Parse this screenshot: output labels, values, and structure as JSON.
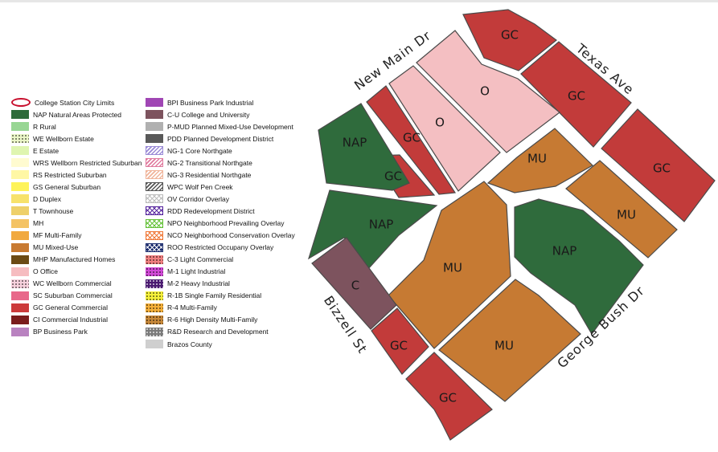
{
  "legend": {
    "column1": [
      {
        "name": "legend-college-station-city-limits",
        "label": "College Station City Limits",
        "swatch": "oval",
        "color": "#c8102e"
      },
      {
        "name": "legend-nap",
        "label": "NAP Natural Areas Protected",
        "swatch": "solid",
        "color": "#2e6b3a"
      },
      {
        "name": "legend-r",
        "label": "R Rural",
        "swatch": "solid",
        "color": "#98d694"
      },
      {
        "name": "legend-we",
        "label": "WE Wellborn Estate",
        "swatch": "dots",
        "color": "#eaf6c8"
      },
      {
        "name": "legend-e",
        "label": "E Estate",
        "swatch": "solid",
        "color": "#dff5b0"
      },
      {
        "name": "legend-wrs",
        "label": "WRS Wellborn Restricted Suburban",
        "swatch": "solid",
        "color": "#fffbd0"
      },
      {
        "name": "legend-rs",
        "label": "RS Restricted Suburban",
        "swatch": "solid",
        "color": "#fff7a5"
      },
      {
        "name": "legend-gs",
        "label": "GS General Suburban",
        "swatch": "solid",
        "color": "#fef35a"
      },
      {
        "name": "legend-d",
        "label": "D Duplex",
        "swatch": "solid",
        "color": "#f7e26b"
      },
      {
        "name": "legend-t",
        "label": "T Townhouse",
        "swatch": "solid",
        "color": "#eed06a"
      },
      {
        "name": "legend-mh",
        "label": "MH",
        "swatch": "solid",
        "color": "#f4c364"
      },
      {
        "name": "legend-mf",
        "label": "MF Multi-Family",
        "swatch": "solid",
        "color": "#f1a93f"
      },
      {
        "name": "legend-mu",
        "label": "MU Mixed-Use",
        "swatch": "solid",
        "color": "#c87a31"
      },
      {
        "name": "legend-mhp",
        "label": "MHP Manufactured Homes",
        "swatch": "solid",
        "color": "#6b4a14"
      },
      {
        "name": "legend-o",
        "label": "O Office",
        "swatch": "solid",
        "color": "#f6bcc0"
      },
      {
        "name": "legend-wc",
        "label": "WC Wellborn Commercial",
        "swatch": "dots",
        "color": "#f7d0dc"
      },
      {
        "name": "legend-sc",
        "label": "SC Suburban Commercial",
        "swatch": "solid",
        "color": "#e8688a"
      },
      {
        "name": "legend-gc",
        "label": "GC General Commercial",
        "swatch": "solid",
        "color": "#cc3a3a"
      },
      {
        "name": "legend-ci",
        "label": "CI Commercial Industrial",
        "swatch": "solid",
        "color": "#7a1c1c"
      },
      {
        "name": "legend-bp",
        "label": "BP Business Park",
        "swatch": "solid",
        "color": "#b982c0"
      }
    ],
    "column2": [
      {
        "name": "legend-bpi",
        "label": "BPI Business Park Industrial",
        "swatch": "solid",
        "color": "#a046b4"
      },
      {
        "name": "legend-cu",
        "label": "C-U College and University",
        "swatch": "solid",
        "color": "#7d535e"
      },
      {
        "name": "legend-pmud",
        "label": "P-MUD Planned Mixed-Use Development",
        "swatch": "solid",
        "color": "#b0b0b0"
      },
      {
        "name": "legend-pdd",
        "label": "PDD Planned Development District",
        "swatch": "solid",
        "color": "#595959"
      },
      {
        "name": "legend-ng1",
        "label": "NG-1 Core Northgate",
        "swatch": "hatch",
        "color": "#9a8ad6"
      },
      {
        "name": "legend-ng2",
        "label": "NG-2 Transitional Northgate",
        "swatch": "hatch",
        "color": "#e07a9e"
      },
      {
        "name": "legend-ng3",
        "label": "NG-3 Residential Northgate",
        "swatch": "hatch",
        "color": "#f0b49a"
      },
      {
        "name": "legend-wpc",
        "label": "WPC Wolf Pen Creek",
        "swatch": "hatch",
        "color": "#555555"
      },
      {
        "name": "legend-ov",
        "label": "OV Corridor Overlay",
        "swatch": "cross",
        "color": "#bdbdbd"
      },
      {
        "name": "legend-rdd",
        "label": "RDD Redevelopment District",
        "swatch": "cross",
        "color": "#5a2aa0"
      },
      {
        "name": "legend-npo",
        "label": "NPO Neighborhood Prevailing Overlay",
        "swatch": "cross",
        "color": "#66c23a"
      },
      {
        "name": "legend-nco",
        "label": "NCO Neighborhood Conservation Overlay",
        "swatch": "cross",
        "color": "#f07a3a"
      },
      {
        "name": "legend-roo",
        "label": "ROO Restricted Occupany Overlay",
        "swatch": "cross-dark",
        "color": "#1a2a6c"
      },
      {
        "name": "legend-c3",
        "label": "C-3 Light Commercial",
        "swatch": "dots",
        "color": "#f08080"
      },
      {
        "name": "legend-m1",
        "label": "M-1 Light Industrial",
        "swatch": "dots",
        "color": "#d24ad8"
      },
      {
        "name": "legend-m2",
        "label": "M-2 Heavy Industrial",
        "swatch": "dots-dark",
        "color": "#4a1a70"
      },
      {
        "name": "legend-r1b",
        "label": "R-1B Single Family Residential",
        "swatch": "dots",
        "color": "#f5f03a"
      },
      {
        "name": "legend-r4",
        "label": "R-4 Multi-Family",
        "swatch": "dots",
        "color": "#f5b03a"
      },
      {
        "name": "legend-r6",
        "label": "R-6 High Density Multi-Family",
        "swatch": "dots",
        "color": "#c8893a"
      },
      {
        "name": "legend-rd",
        "label": "R&D Research and Development",
        "swatch": "dots-dark",
        "color": "#7a7a7a"
      },
      {
        "name": "legend-brazos",
        "label": "Brazos County",
        "swatch": "solid",
        "color": "#cfcfcf"
      }
    ]
  },
  "parcel_colors": {
    "GC": "#c23b3a",
    "O": "#f4bfc2",
    "MU": "#c67a33",
    "NAP": "#2f6b3c",
    "C": "#7d535e"
  },
  "map": {
    "parcel_labels": {
      "gc_top": "GC",
      "gc_texas_ave": "GC",
      "gc_east": "GC",
      "o_big": "O",
      "o_small": "O",
      "gc_strip": "GC",
      "gc_small": "GC",
      "nap_northwest": "NAP",
      "nap_west": "NAP",
      "mu_northeast": "MU",
      "mu_east": "MU",
      "mu_center": "MU",
      "nap_center": "NAP",
      "c_campus": "C",
      "gc_southwest": "GC",
      "mu_south": "MU",
      "gc_bottom": "GC"
    },
    "streets": {
      "new_main": "New Main Dr",
      "texas_ave": "Texas Ave",
      "bizzell": "Bizzell St",
      "george_bush": "George Bush Dr"
    }
  }
}
